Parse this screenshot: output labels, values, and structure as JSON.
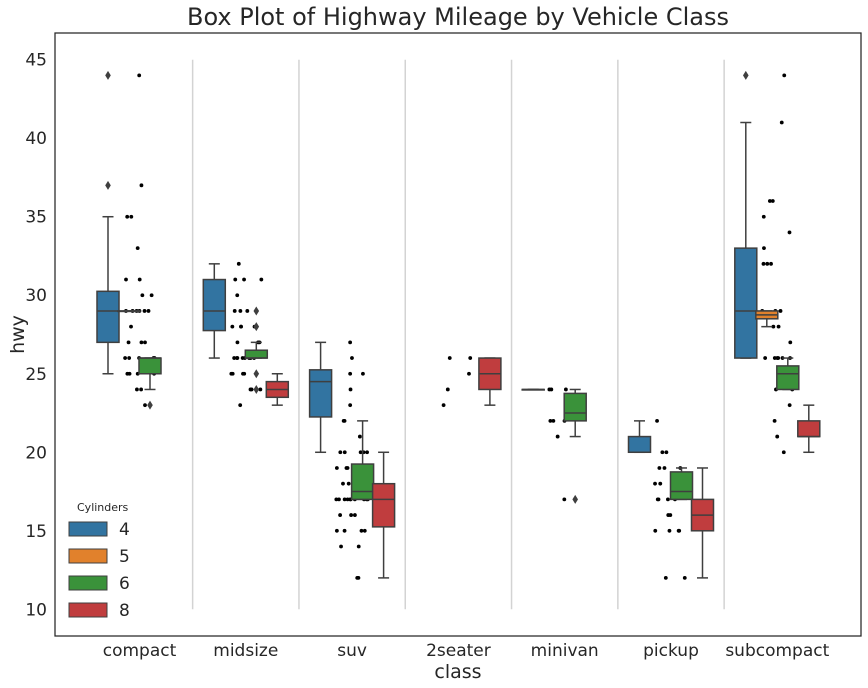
{
  "chart_data": {
    "type": "box",
    "title": "Box Plot of Highway Mileage by Vehicle Class",
    "xlabel": "class",
    "ylabel": "hwy",
    "ylim": [
      8.3,
      46.7
    ],
    "yticks": [
      10,
      15,
      20,
      25,
      30,
      35,
      40,
      45
    ],
    "categories": [
      "compact",
      "midsize",
      "suv",
      "2seater",
      "minivan",
      "pickup",
      "subcompact"
    ],
    "legend": {
      "title": "Cylinders",
      "position": "lower-left",
      "entries": [
        "4",
        "5",
        "6",
        "8"
      ]
    },
    "hue_colors": {
      "4": "#3274a1",
      "5": "#e1812c",
      "6": "#3a923a",
      "8": "#c03d3e"
    },
    "boxes": [
      {
        "category": "compact",
        "cyl": "4",
        "whislo": 25,
        "q1": 27,
        "med": 29,
        "q3": 30.25,
        "whishi": 35,
        "fliers": [
          37,
          44
        ]
      },
      {
        "category": "compact",
        "cyl": "5",
        "whislo": 29,
        "q1": 29,
        "med": 29,
        "q3": 29,
        "whishi": 29,
        "fliers": []
      },
      {
        "category": "compact",
        "cyl": "6",
        "whislo": 24,
        "q1": 25,
        "med": 26,
        "q3": 26,
        "whishi": 26,
        "fliers": [
          23
        ]
      },
      {
        "category": "midsize",
        "cyl": "4",
        "whislo": 26,
        "q1": 27.75,
        "med": 29,
        "q3": 31,
        "whishi": 32,
        "fliers": []
      },
      {
        "category": "midsize",
        "cyl": "6",
        "whislo": 26,
        "q1": 26,
        "med": 26,
        "q3": 26.5,
        "whishi": 27,
        "fliers": [
          29,
          28,
          25,
          24
        ]
      },
      {
        "category": "midsize",
        "cyl": "8",
        "whislo": 23,
        "q1": 23.5,
        "med": 24,
        "q3": 24.5,
        "whishi": 25,
        "fliers": []
      },
      {
        "category": "suv",
        "cyl": "4",
        "whislo": 20,
        "q1": 22.25,
        "med": 24.5,
        "q3": 25.25,
        "whishi": 27,
        "fliers": []
      },
      {
        "category": "suv",
        "cyl": "6",
        "whislo": 17,
        "q1": 17,
        "med": 17.5,
        "q3": 19.25,
        "whishi": 22,
        "fliers": []
      },
      {
        "category": "suv",
        "cyl": "8",
        "whislo": 12,
        "q1": 15.25,
        "med": 17,
        "q3": 18,
        "whishi": 20,
        "fliers": []
      },
      {
        "category": "2seater",
        "cyl": "8",
        "whislo": 23,
        "q1": 24,
        "med": 25,
        "q3": 26,
        "whishi": 26,
        "fliers": []
      },
      {
        "category": "minivan",
        "cyl": "4",
        "whislo": 24,
        "q1": 24,
        "med": 24,
        "q3": 24,
        "whishi": 24,
        "fliers": []
      },
      {
        "category": "minivan",
        "cyl": "6",
        "whislo": 21,
        "q1": 22,
        "med": 22.5,
        "q3": 23.75,
        "whishi": 24,
        "fliers": [
          17
        ]
      },
      {
        "category": "pickup",
        "cyl": "4",
        "whislo": 20,
        "q1": 20,
        "med": 20,
        "q3": 21,
        "whishi": 22,
        "fliers": []
      },
      {
        "category": "pickup",
        "cyl": "6",
        "whislo": 17,
        "q1": 17,
        "med": 17.5,
        "q3": 18.75,
        "whishi": 19,
        "fliers": []
      },
      {
        "category": "pickup",
        "cyl": "8",
        "whislo": 12,
        "q1": 15,
        "med": 16,
        "q3": 17,
        "whishi": 19,
        "fliers": []
      },
      {
        "category": "subcompact",
        "cyl": "4",
        "whislo": 26,
        "q1": 26,
        "med": 29,
        "q3": 33,
        "whishi": 41,
        "fliers": [
          44
        ]
      },
      {
        "category": "subcompact",
        "cyl": "5",
        "whislo": 28,
        "q1": 28.5,
        "med": 28.75,
        "q3": 29,
        "whishi": 29,
        "fliers": []
      },
      {
        "category": "subcompact",
        "cyl": "6",
        "whislo": 24,
        "q1": 24,
        "med": 25,
        "q3": 25.5,
        "whishi": 26,
        "fliers": []
      },
      {
        "category": "subcompact",
        "cyl": "8",
        "whislo": 20,
        "q1": 21,
        "med": 21,
        "q3": 22,
        "whishi": 23,
        "fliers": []
      }
    ],
    "strip_points": [
      {
        "category": "compact",
        "values": [
          44,
          37,
          35,
          35,
          33,
          31,
          31,
          30,
          30,
          29,
          29,
          29,
          29,
          29,
          29,
          28,
          27,
          27,
          27,
          26,
          26,
          26,
          26,
          26,
          25,
          25,
          25,
          25,
          24,
          24,
          23
        ]
      },
      {
        "category": "midsize",
        "values": [
          32,
          31,
          31,
          31,
          30,
          29,
          29,
          29,
          28,
          28,
          28,
          28,
          27,
          27,
          27,
          26,
          26,
          26,
          26,
          26,
          26,
          26,
          26,
          25,
          25,
          25,
          25,
          24,
          24,
          24,
          23
        ]
      },
      {
        "category": "suv",
        "values": [
          27,
          26,
          25,
          25,
          24,
          23,
          22,
          22,
          21,
          20,
          20,
          20,
          20,
          20,
          19,
          19,
          19,
          19,
          19,
          19,
          19,
          19,
          18,
          18,
          18,
          18,
          17,
          17,
          17,
          17,
          17,
          17,
          17,
          17,
          17,
          17,
          16,
          16,
          16,
          15,
          15,
          15,
          15,
          14,
          14,
          12,
          12
        ]
      },
      {
        "category": "2seater",
        "values": [
          26,
          26,
          25,
          24,
          23
        ]
      },
      {
        "category": "minivan",
        "values": [
          24,
          24,
          24,
          23,
          23,
          22,
          22,
          22,
          21,
          17
        ]
      },
      {
        "category": "pickup",
        "values": [
          22,
          20,
          20,
          19,
          19,
          19,
          18,
          18,
          17,
          17,
          17,
          17,
          16,
          16,
          15,
          15,
          15,
          15,
          12,
          12
        ]
      },
      {
        "category": "subcompact",
        "values": [
          44,
          41,
          36,
          36,
          35,
          34,
          33,
          32,
          32,
          32,
          29,
          29,
          29,
          28,
          28,
          27,
          26,
          26,
          26,
          26,
          26,
          26,
          25,
          25,
          24,
          24,
          23,
          22,
          21,
          20
        ]
      }
    ]
  }
}
